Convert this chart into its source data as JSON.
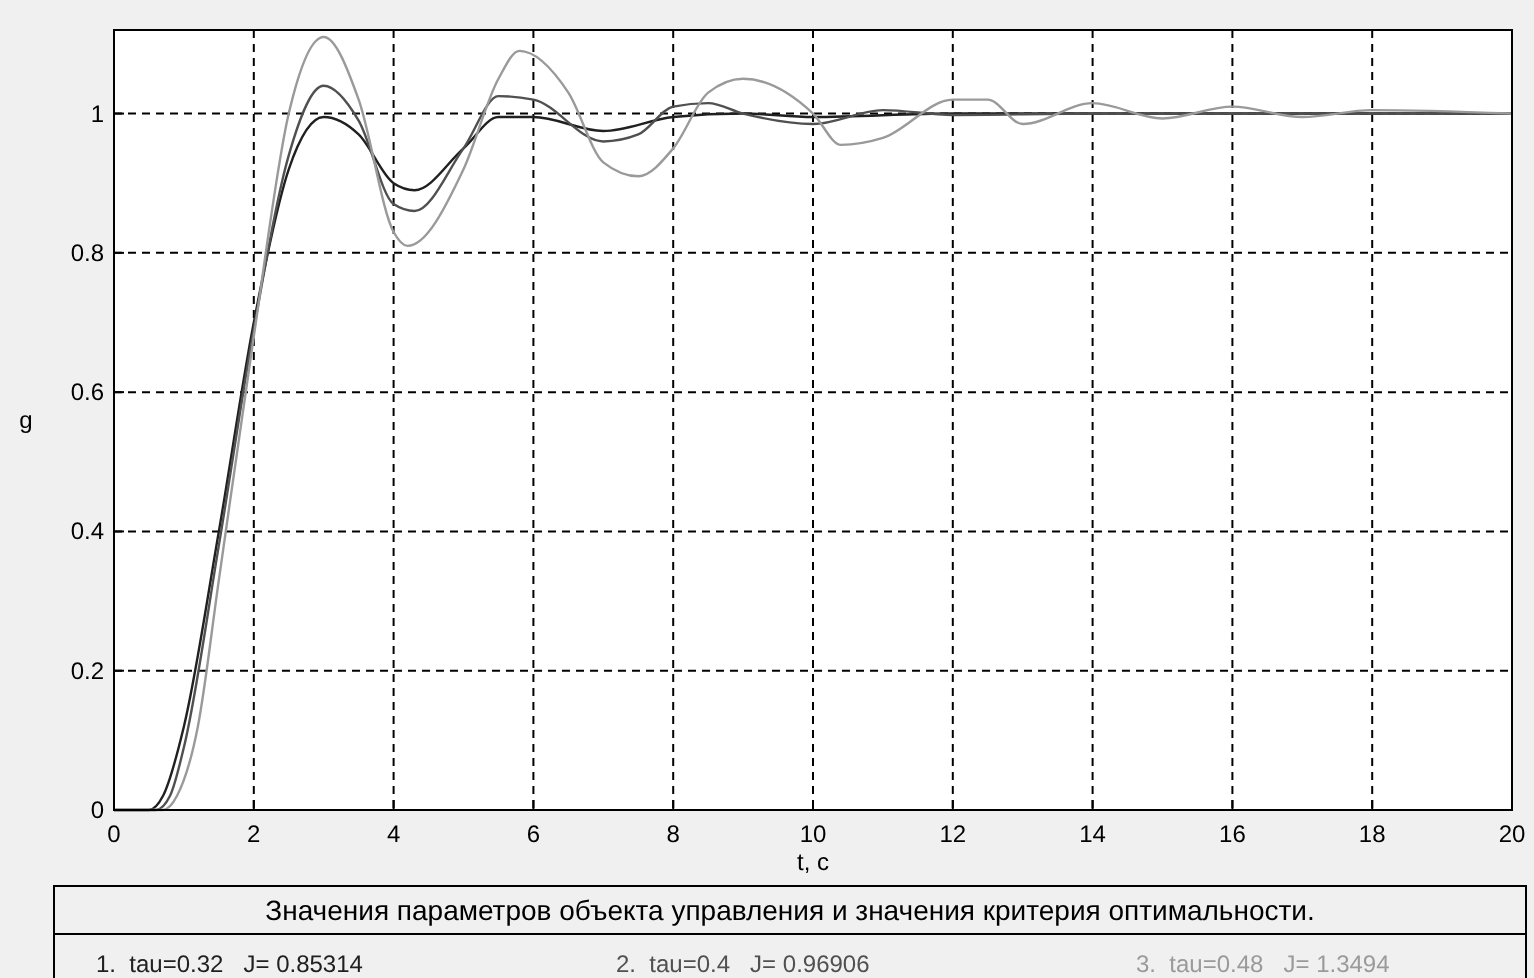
{
  "chart_data": {
    "type": "line",
    "xlabel": "t, c",
    "ylabel": "g",
    "legend_title": "Значения параметров объекта управления и значения критерия оптимальности.",
    "legend": "bottom",
    "grid": true,
    "line_style": "solid",
    "xlim": [
      0,
      20
    ],
    "ylim": [
      0,
      1.12
    ],
    "xticks": [
      0,
      2,
      4,
      6,
      8,
      10,
      12,
      14,
      16,
      18,
      20
    ],
    "yticks": [
      0,
      0.2,
      0.4,
      0.6,
      0.8,
      1
    ],
    "series": [
      {
        "name": "1.  tau=0.32   J= 0.85314",
        "color": "#202020",
        "x": [
          0,
          0.5,
          0.7,
          1,
          1.5,
          2,
          2.5,
          3,
          3.5,
          4,
          4.3,
          5,
          5.5,
          6,
          7,
          8,
          9,
          10,
          12,
          20
        ],
        "values": [
          0,
          0,
          0.02,
          0.12,
          0.4,
          0.7,
          0.92,
          0.995,
          0.97,
          0.9,
          0.89,
          0.95,
          0.995,
          0.995,
          0.975,
          0.995,
          1,
          0.995,
          1,
          1
        ]
      },
      {
        "name": "2.  tau=0.4   J= 0.96906",
        "color": "#505050",
        "x": [
          0,
          0.6,
          0.8,
          1,
          1.5,
          2,
          2.5,
          3,
          3.5,
          4,
          4.3,
          5,
          5.5,
          6,
          7,
          7.5,
          8,
          8.5,
          9,
          10,
          11,
          12,
          14,
          20
        ],
        "values": [
          0,
          0,
          0.02,
          0.09,
          0.38,
          0.69,
          0.94,
          1.04,
          0.99,
          0.87,
          0.86,
          0.95,
          1.025,
          1.02,
          0.96,
          0.97,
          1.01,
          1.015,
          1,
          0.985,
          1.005,
          0.998,
          1,
          1
        ]
      },
      {
        "name": "3.  tau=0.48   J= 1.3494",
        "color": "#9a9a9a",
        "x": [
          0,
          0.7,
          0.9,
          1.2,
          1.5,
          2,
          2.5,
          3,
          3.5,
          4,
          4.2,
          5,
          5.5,
          5.8,
          6.5,
          7,
          7.5,
          8,
          8.5,
          9,
          10,
          10.4,
          11,
          12,
          12.5,
          13,
          14,
          15,
          16,
          17,
          18,
          20
        ],
        "values": [
          0,
          0,
          0.02,
          0.12,
          0.33,
          0.68,
          1,
          1.11,
          1.02,
          0.83,
          0.81,
          0.92,
          1.05,
          1.09,
          1.03,
          0.93,
          0.91,
          0.95,
          1.03,
          1.05,
          1,
          0.955,
          0.965,
          1.02,
          1.02,
          0.985,
          1.015,
          0.993,
          1.01,
          0.995,
          1.005,
          1
        ]
      }
    ]
  }
}
